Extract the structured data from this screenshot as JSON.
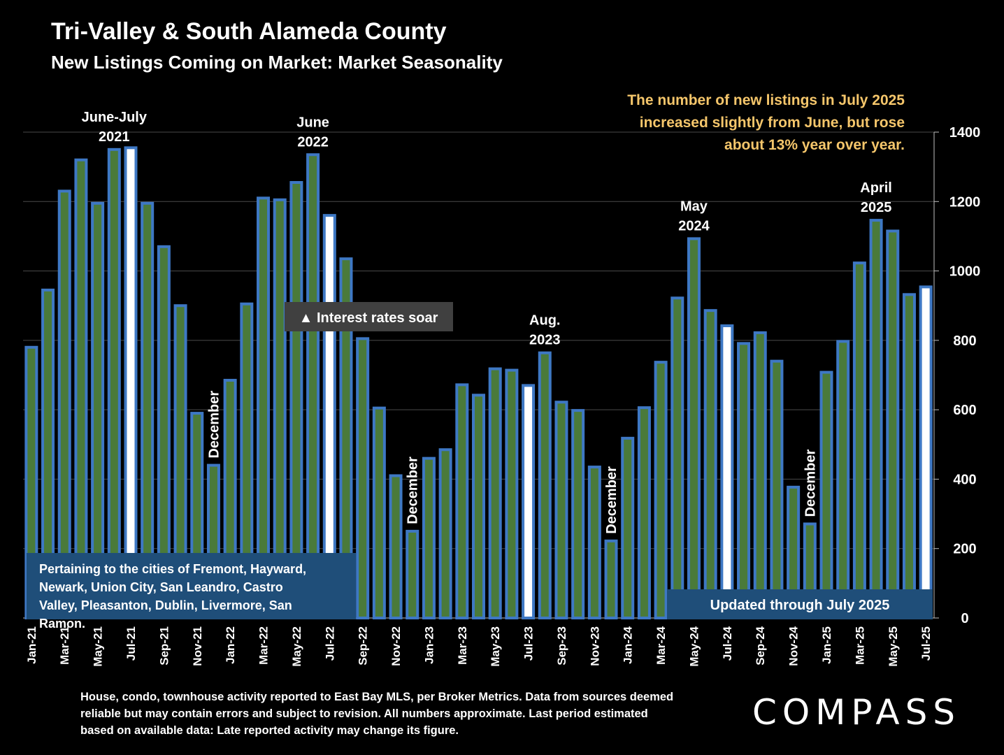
{
  "title": "Tri-Valley & South Alameda County",
  "subtitle": "New Listings Coming on Market: Market Seasonality",
  "callout": "The number of new listings in July 2025 increased slightly from June, but rose about 13% year over year.",
  "footnote": "House, condo, townhouse activity reported to East Bay MLS, per Broker Metrics. Data from sources deemed reliable but may contain errors and subject to revision. All numbers approximate. Last period estimated based on available data: Late reported activity may change its figure.",
  "logo": "COMPASS",
  "colors": {
    "background": "#000000",
    "bar_fill": "#4a7a3a",
    "bar_edge": "#3e78c4",
    "highlight_bar": "#ffffff",
    "callout_text": "#f5c66b",
    "info_box": "#1f4e79"
  },
  "chart_data": {
    "type": "bar",
    "categories": [
      "Jan-21",
      "Feb-21",
      "Mar-21",
      "Apr-21",
      "May-21",
      "Jun-21",
      "Jul-21",
      "Aug-21",
      "Sep-21",
      "Oct-21",
      "Nov-21",
      "Dec-21",
      "Jan-22",
      "Feb-22",
      "Mar-22",
      "Apr-22",
      "May-22",
      "Jun-22",
      "Jul-22",
      "Aug-22",
      "Sep-22",
      "Oct-22",
      "Nov-22",
      "Dec-22",
      "Jan-23",
      "Feb-23",
      "Mar-23",
      "Apr-23",
      "May-23",
      "Jun-23",
      "Jul-23",
      "Aug-23",
      "Sep-23",
      "Oct-23",
      "Nov-23",
      "Dec-23",
      "Jan-24",
      "Feb-24",
      "Mar-24",
      "Apr-24",
      "May-24",
      "Jun-24",
      "Jul-24",
      "Aug-24",
      "Sep-24",
      "Oct-24",
      "Nov-24",
      "Dec-24",
      "Jan-25",
      "Feb-25",
      "Mar-25",
      "Apr-25",
      "May-25",
      "Jun-25",
      "Jul-25"
    ],
    "x_tick_labels": [
      "Jan-21",
      "Mar-21",
      "May-21",
      "Jul-21",
      "Sep-21",
      "Nov-21",
      "Jan-22",
      "Mar-22",
      "May-22",
      "Jul-22",
      "Sep-22",
      "Nov-22",
      "Jan-23",
      "Mar-23",
      "May-23",
      "Jul-23",
      "Sep-23",
      "Nov-23",
      "Jan-24",
      "Mar-24",
      "May-24",
      "Jul-24",
      "Sep-24",
      "Nov-24",
      "Jan-25",
      "Mar-25",
      "May-25",
      "Jul-25"
    ],
    "values": [
      780,
      945,
      1230,
      1320,
      1195,
      1350,
      1355,
      1195,
      1070,
      900,
      590,
      440,
      685,
      905,
      1210,
      1205,
      1255,
      1335,
      1160,
      1035,
      805,
      605,
      410,
      250,
      460,
      485,
      672,
      642,
      718,
      714,
      670,
      764,
      622,
      598,
      435,
      222,
      518,
      606,
      737,
      922,
      1093,
      886,
      842,
      791,
      822,
      740,
      377,
      271,
      708,
      797,
      1023,
      1146,
      1115,
      932,
      954
    ],
    "highlight": [
      "Jul-21",
      "Jul-22",
      "Jul-23",
      "Jul-24",
      "Jul-25"
    ],
    "ylim": [
      0,
      1400
    ],
    "y_ticks": [
      0,
      200,
      400,
      600,
      800,
      1000,
      1200,
      1400
    ],
    "y_axis_side": "right",
    "grid": true,
    "annotations": [
      {
        "text": [
          "June-July",
          "2021"
        ],
        "category": "Jun-21",
        "style": "above"
      },
      {
        "text": [
          "June",
          "2022"
        ],
        "category": "Jun-22",
        "style": "above"
      },
      {
        "text": [
          "Aug.",
          "2023"
        ],
        "category": "Aug-23",
        "style": "above"
      },
      {
        "text": [
          "May",
          "2024"
        ],
        "category": "May-24",
        "style": "above"
      },
      {
        "text": [
          "April",
          "2025"
        ],
        "category": "Apr-25",
        "style": "above"
      },
      {
        "text": [
          "December"
        ],
        "category": "Dec-21",
        "style": "vertical"
      },
      {
        "text": [
          "December"
        ],
        "category": "Dec-22",
        "style": "vertical"
      },
      {
        "text": [
          "December"
        ],
        "category": "Dec-23",
        "style": "vertical"
      },
      {
        "text": [
          "December"
        ],
        "category": "Dec-24",
        "style": "vertical"
      }
    ],
    "event_label": "▲ Interest rates soar",
    "cities_note": "Pertaining to the cities of Fremont, Hayward, Newark, Union City, San Leandro, Castro Valley, Pleasanton, Dublin, Livermore, San Ramon.",
    "updated_note": "Updated through July 2025"
  }
}
